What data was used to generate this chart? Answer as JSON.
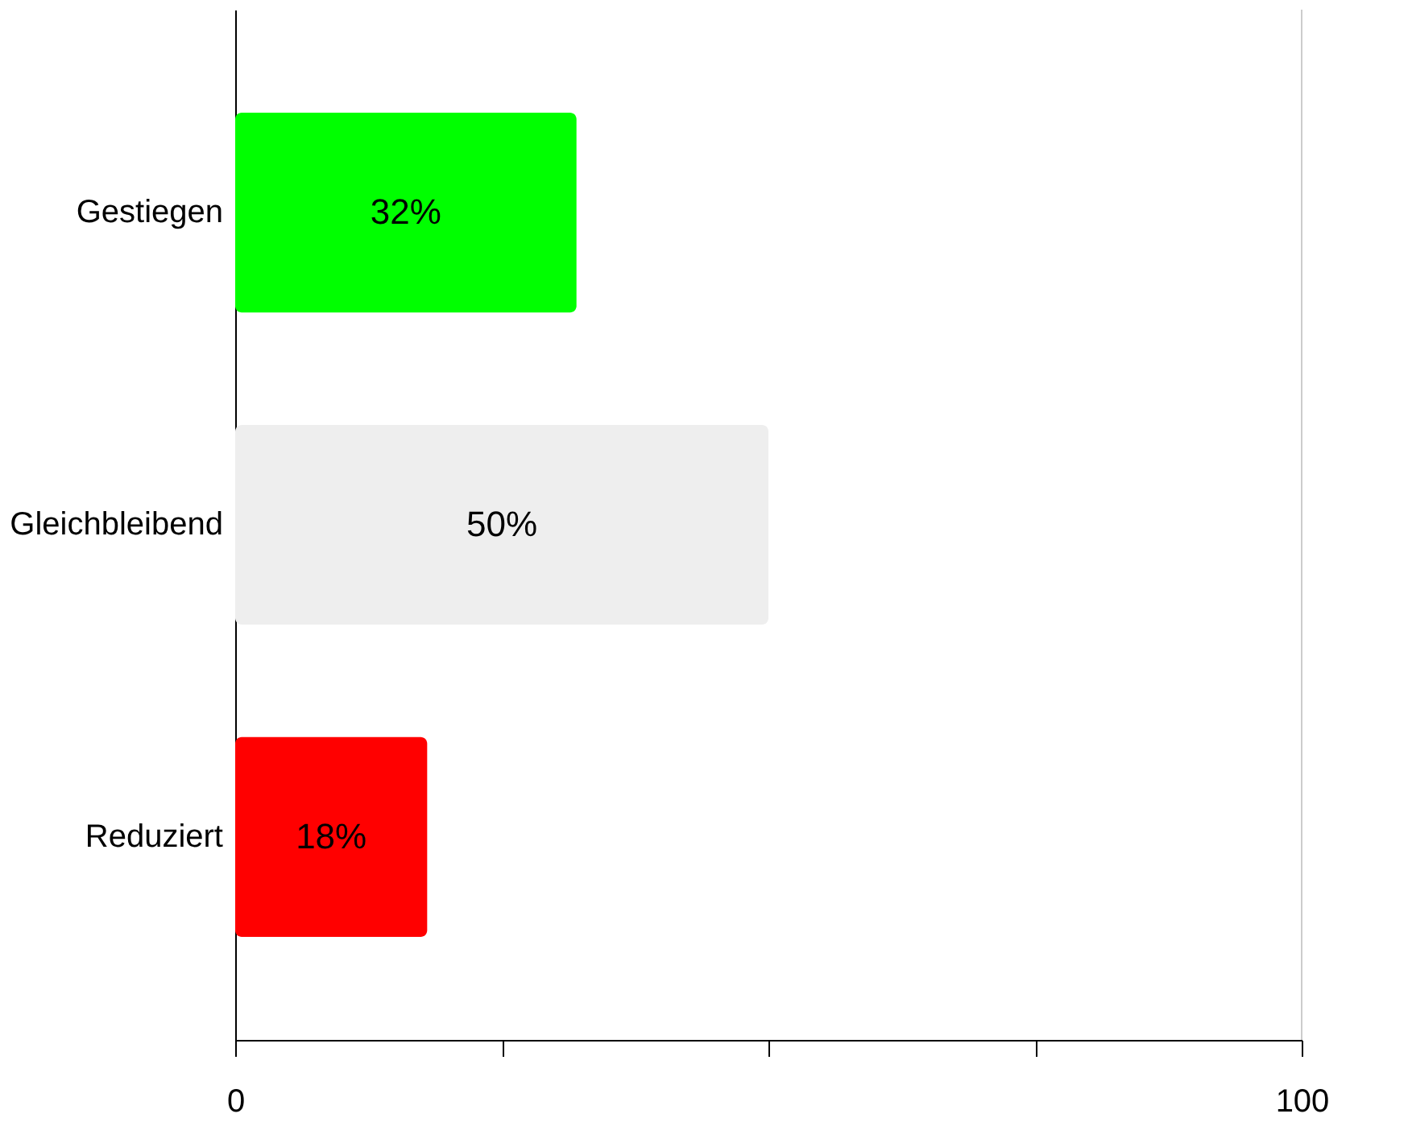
{
  "chart_data": {
    "type": "bar",
    "orientation": "horizontal",
    "categories": [
      "Gestiegen",
      "Gleichbleibend",
      "Reduziert"
    ],
    "values": [
      32,
      50,
      18
    ],
    "colors": [
      "#00ff00",
      "#eeeeee",
      "#ff0000"
    ],
    "value_labels": [
      "32%",
      "50%",
      "18%"
    ],
    "xlim": [
      0,
      100
    ],
    "xticks": [
      0,
      {
        "value": 25,
        "label": null
      },
      {
        "value": 50,
        "label": null
      },
      {
        "value": 75,
        "label": null
      },
      100
    ],
    "ref_lines": [
      {
        "axis": "x",
        "value": 100,
        "color": "#cccccc"
      }
    ],
    "grid": false
  }
}
